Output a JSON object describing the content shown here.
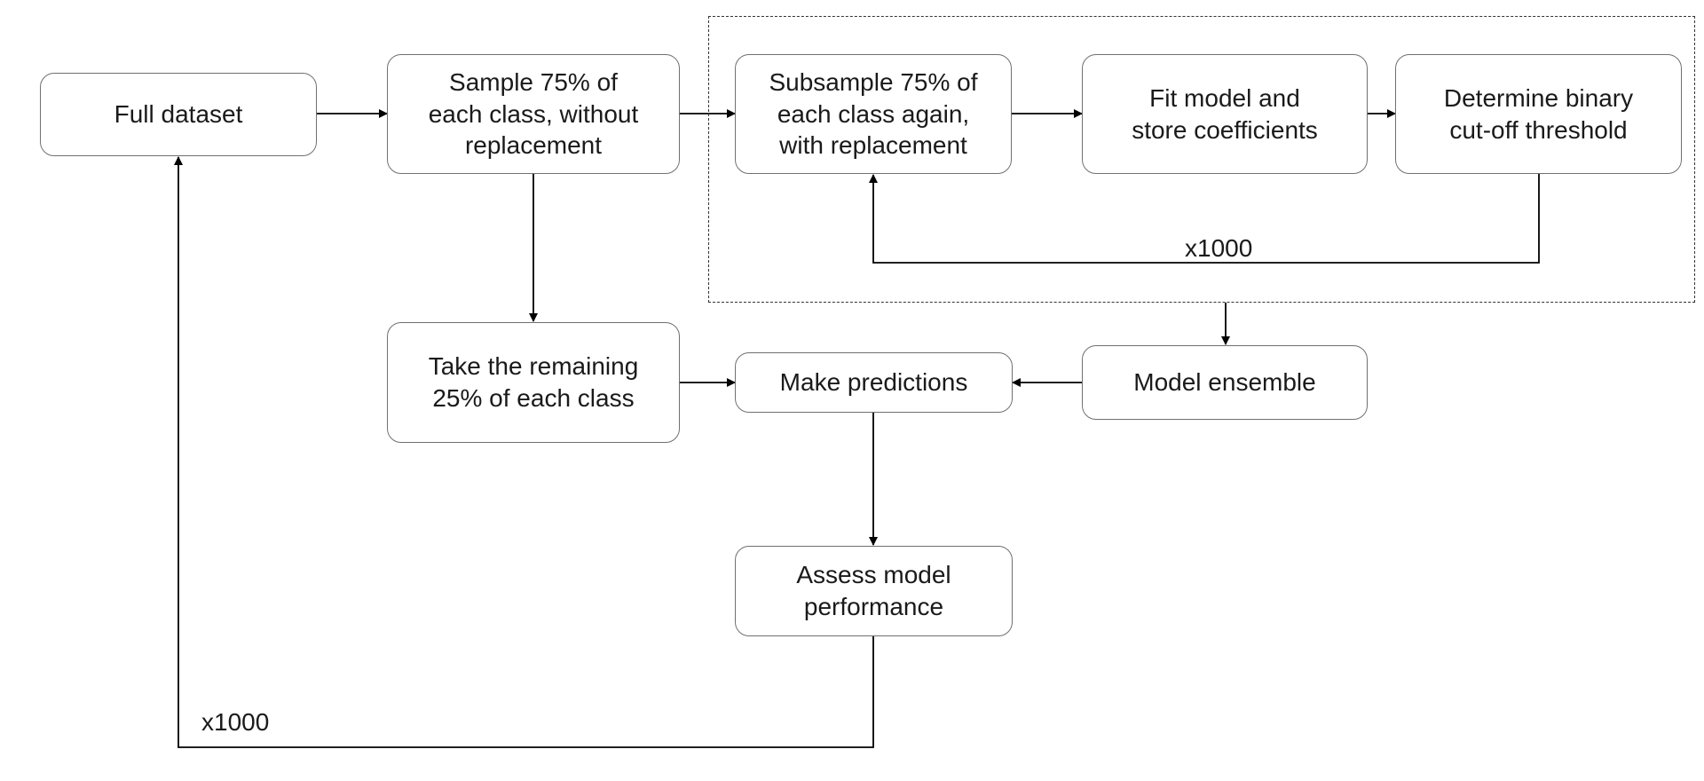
{
  "diagram": {
    "nodes": {
      "full_dataset": "Full dataset",
      "sample_75": "Sample 75% of\neach class, without\nreplacement",
      "subsample_75": "Subsample 75% of\neach class again,\nwith replacement",
      "fit_model": "Fit model and\nstore coefficients",
      "determine_threshold": "Determine binary\ncut-off threshold",
      "take_remaining": "Take the remaining\n25% of each class",
      "make_predictions": "Make predictions",
      "model_ensemble": "Model ensemble",
      "assess_performance": "Assess model\nperformance"
    },
    "loops": {
      "inner_label": "x1000",
      "outer_label": "x1000"
    }
  }
}
